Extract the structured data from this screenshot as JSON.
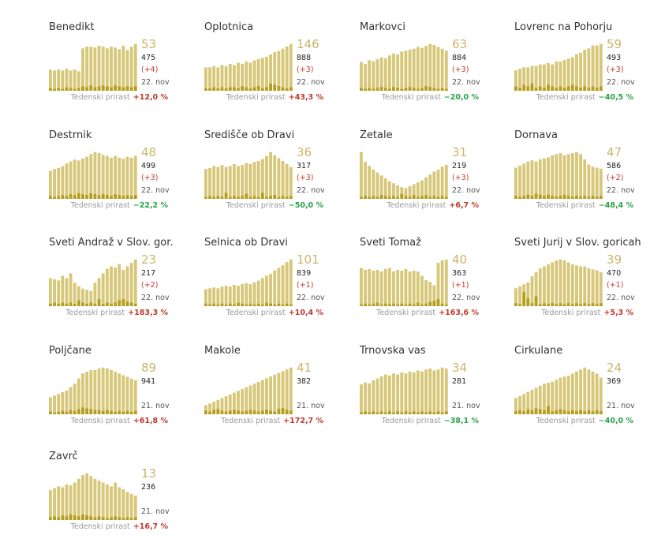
{
  "colors": {
    "bar": "#d7c778",
    "bar_dark": "#b59e1e",
    "big_number": "#c9b56a",
    "positive_growth": "#c0392b",
    "negative_growth": "#27a347",
    "new_cases": "#c0392b"
  },
  "growth_label": "Tedenski prirast",
  "chart_data": [
    {
      "type": "bar",
      "title": "Benedikt",
      "current": "53",
      "total": "475",
      "new": "(+4)",
      "date": "22. nov",
      "growth": "+12,0 %",
      "growth_positive": true,
      "values": [
        24,
        23,
        24,
        23,
        25,
        23,
        24,
        22,
        48,
        50,
        50,
        49,
        51,
        50,
        48,
        50,
        49,
        47,
        51,
        46,
        50,
        53
      ],
      "recent": [
        3,
        2,
        3,
        2,
        4,
        3,
        2,
        3,
        5,
        4,
        6,
        4,
        5,
        6,
        5,
        4,
        6,
        5,
        4,
        5,
        4,
        5
      ]
    },
    {
      "type": "bar",
      "title": "Oplotnica",
      "current": "146",
      "total": "888",
      "new": "(+3)",
      "date": "22. nov",
      "growth": "+43,3 %",
      "growth_positive": true,
      "values": [
        20,
        20,
        21,
        20,
        22,
        21,
        23,
        22,
        24,
        23,
        25,
        24,
        26,
        27,
        28,
        29,
        31,
        33,
        34,
        36,
        38,
        40
      ],
      "recent": [
        2,
        2,
        3,
        2,
        3,
        2,
        3,
        3,
        2,
        4,
        3,
        2,
        3,
        4,
        2,
        3,
        6,
        5,
        4,
        3,
        2,
        3
      ]
    },
    {
      "type": "bar",
      "title": "Markovci",
      "current": "63",
      "total": "884",
      "new": "(+3)",
      "date": "22. nov",
      "growth": "−20,0 %",
      "growth_positive": false,
      "values": [
        30,
        28,
        32,
        31,
        33,
        35,
        34,
        37,
        39,
        38,
        41,
        42,
        43,
        44,
        46,
        45,
        47,
        49,
        48,
        46,
        44,
        42
      ],
      "recent": [
        3,
        2,
        3,
        2,
        3,
        4,
        3,
        2,
        4,
        3,
        2,
        3,
        4,
        3,
        2,
        3,
        5,
        4,
        3,
        2,
        3,
        2
      ]
    },
    {
      "type": "bar",
      "title": "Lovrenc na Pohorju",
      "current": "59",
      "total": "493",
      "new": "(+3)",
      "date": "22. nov",
      "growth": "−40,5 %",
      "growth_positive": false,
      "values": [
        14,
        15,
        16,
        16,
        17,
        17,
        18,
        18,
        19,
        18,
        20,
        20,
        21,
        22,
        23,
        25,
        26,
        28,
        29,
        31,
        31,
        32
      ],
      "recent": [
        3,
        2,
        4,
        3,
        5,
        2,
        3,
        2,
        4,
        3,
        2,
        3,
        2,
        3,
        4,
        3,
        2,
        3,
        2,
        3,
        2,
        3
      ]
    },
    {
      "type": "bar",
      "title": "Destrnik",
      "current": "48",
      "total": "499",
      "new": "(+3)",
      "date": "22. nov",
      "growth": "−22,2 %",
      "growth_positive": false,
      "values": [
        30,
        32,
        33,
        35,
        38,
        40,
        42,
        41,
        43,
        45,
        48,
        50,
        49,
        47,
        46,
        44,
        46,
        44,
        43,
        45,
        44,
        46
      ],
      "recent": [
        3,
        2,
        3,
        4,
        3,
        5,
        4,
        6,
        5,
        4,
        6,
        5,
        4,
        5,
        4,
        3,
        5,
        4,
        3,
        4,
        3,
        4
      ]
    },
    {
      "type": "bar",
      "title": "Središče ob Dravi",
      "current": "36",
      "total": "317",
      "new": "(+3)",
      "date": "22. nov",
      "growth": "−50,0 %",
      "growth_positive": false,
      "values": [
        30,
        31,
        33,
        32,
        34,
        32,
        33,
        35,
        33,
        34,
        36,
        35,
        37,
        38,
        40,
        43,
        47,
        44,
        41,
        38,
        35,
        32
      ],
      "recent": [
        2,
        3,
        2,
        3,
        2,
        6,
        2,
        3,
        2,
        3,
        5,
        2,
        3,
        2,
        6,
        2,
        3,
        4,
        2,
        3,
        2,
        3
      ]
    },
    {
      "type": "bar",
      "title": "Žetale",
      "current": "31",
      "total": "219",
      "new": "(+3)",
      "date": "22. nov",
      "growth": "+6,7 %",
      "growth_positive": true,
      "values": [
        48,
        38,
        34,
        30,
        27,
        24,
        21,
        18,
        16,
        14,
        12,
        11,
        13,
        15,
        17,
        19,
        22,
        25,
        28,
        30,
        33,
        35
      ],
      "recent": [
        2,
        3,
        2,
        3,
        2,
        4,
        3,
        2,
        3,
        2,
        5,
        3,
        2,
        4,
        2,
        3,
        4,
        2,
        3,
        2,
        3,
        2
      ]
    },
    {
      "type": "bar",
      "title": "Dornava",
      "current": "47",
      "total": "586",
      "new": "(+2)",
      "date": "22. nov",
      "growth": "−48,4 %",
      "growth_positive": false,
      "values": [
        30,
        32,
        34,
        36,
        37,
        36,
        38,
        39,
        40,
        42,
        43,
        44,
        42,
        43,
        44,
        45,
        43,
        38,
        33,
        31,
        30,
        29
      ],
      "recent": [
        3,
        2,
        3,
        4,
        3,
        5,
        4,
        3,
        4,
        3,
        2,
        3,
        4,
        3,
        2,
        3,
        2,
        3,
        2,
        3,
        2,
        3
      ]
    },
    {
      "type": "bar",
      "title": "Sveti Andraž v Slov. gor.",
      "current": "23",
      "total": "217",
      "new": "(+2)",
      "date": "22. nov",
      "growth": "+183,3 %",
      "growth_positive": true,
      "values": [
        24,
        23,
        22,
        26,
        24,
        28,
        20,
        17,
        15,
        14,
        13,
        20,
        24,
        28,
        32,
        34,
        33,
        36,
        31,
        34,
        37,
        40
      ],
      "recent": [
        2,
        3,
        2,
        3,
        2,
        3,
        2,
        5,
        3,
        2,
        3,
        2,
        6,
        2,
        3,
        2,
        3,
        5,
        6,
        4,
        3,
        2
      ]
    },
    {
      "type": "bar",
      "title": "Selnica ob Dravi",
      "current": "101",
      "total": "839",
      "new": "(+1)",
      "date": "22. nov",
      "growth": "+10,4 %",
      "growth_positive": true,
      "values": [
        20,
        21,
        22,
        21,
        23,
        24,
        23,
        25,
        24,
        26,
        27,
        26,
        28,
        30,
        33,
        36,
        38,
        42,
        45,
        48,
        52,
        55
      ],
      "recent": [
        3,
        2,
        3,
        2,
        3,
        2,
        3,
        2,
        4,
        3,
        2,
        3,
        2,
        3,
        2,
        4,
        3,
        2,
        3,
        2,
        3,
        2
      ]
    },
    {
      "type": "bar",
      "title": "Sveti Tomaž",
      "current": "40",
      "total": "363",
      "new": "(+1)",
      "date": "22. nov",
      "growth": "+163,6 %",
      "growth_positive": true,
      "values": [
        44,
        42,
        43,
        41,
        42,
        40,
        43,
        44,
        40,
        42,
        41,
        43,
        40,
        41,
        40,
        35,
        30,
        28,
        24,
        50,
        53,
        54
      ],
      "recent": [
        2,
        3,
        2,
        3,
        4,
        2,
        3,
        2,
        3,
        2,
        3,
        2,
        3,
        2,
        4,
        2,
        3,
        5,
        6,
        8,
        3,
        2
      ]
    },
    {
      "type": "bar",
      "title": "Sveti Jurij v Slov. goricah",
      "current": "39",
      "total": "470",
      "new": "(+1)",
      "date": "22. nov",
      "growth": "+5,3 %",
      "growth_positive": true,
      "values": [
        18,
        20,
        22,
        24,
        30,
        34,
        38,
        40,
        42,
        44,
        46,
        47,
        46,
        44,
        42,
        41,
        40,
        40,
        38,
        37,
        36,
        34
      ],
      "recent": [
        3,
        2,
        14,
        8,
        3,
        10,
        2,
        3,
        2,
        3,
        2,
        3,
        2,
        3,
        2,
        3,
        2,
        3,
        2,
        3,
        2,
        3
      ]
    },
    {
      "type": "bar",
      "title": "Poljčane",
      "current": "89",
      "total": "941",
      "new": "",
      "date": "21. nov",
      "growth": "+61,8 %",
      "growth_positive": true,
      "values": [
        20,
        22,
        24,
        26,
        28,
        32,
        36,
        42,
        48,
        50,
        52,
        52,
        54,
        55,
        54,
        52,
        50,
        48,
        46,
        44,
        42,
        40
      ],
      "recent": [
        3,
        2,
        3,
        4,
        3,
        5,
        4,
        6,
        8,
        7,
        6,
        5,
        5,
        4,
        5,
        4,
        3,
        4,
        3,
        4,
        3,
        4
      ]
    },
    {
      "type": "bar",
      "title": "Makole",
      "current": "41",
      "total": "382",
      "new": "",
      "date": "21. nov",
      "growth": "+172,7 %",
      "growth_positive": true,
      "values": [
        10,
        12,
        14,
        16,
        18,
        20,
        22,
        24,
        26,
        28,
        30,
        32,
        34,
        36,
        38,
        40,
        42,
        44,
        46,
        48,
        50,
        52
      ],
      "recent": [
        4,
        3,
        5,
        6,
        4,
        3,
        4,
        5,
        4,
        3,
        4,
        5,
        4,
        3,
        4,
        5,
        4,
        3,
        6,
        7,
        5,
        4
      ]
    },
    {
      "type": "bar",
      "title": "Trnovska vas",
      "current": "34",
      "total": "281",
      "new": "",
      "date": "21. nov",
      "growth": "−38,1 %",
      "growth_positive": false,
      "values": [
        30,
        32,
        31,
        34,
        36,
        38,
        40,
        39,
        41,
        40,
        42,
        41,
        43,
        42,
        44,
        43,
        45,
        46,
        44,
        45,
        47,
        46
      ],
      "recent": [
        2,
        3,
        2,
        3,
        2,
        3,
        2,
        3,
        2,
        3,
        2,
        3,
        2,
        3,
        2,
        3,
        2,
        3,
        2,
        3,
        2,
        3
      ]
    },
    {
      "type": "bar",
      "title": "Cirkulane",
      "current": "24",
      "total": "369",
      "new": "",
      "date": "21. nov",
      "growth": "−40,0 %",
      "growth_positive": false,
      "values": [
        16,
        18,
        20,
        22,
        24,
        26,
        28,
        30,
        31,
        32,
        34,
        36,
        37,
        38,
        40,
        42,
        44,
        46,
        44,
        42,
        40,
        36
      ],
      "recent": [
        3,
        4,
        3,
        5,
        4,
        6,
        5,
        4,
        8,
        3,
        4,
        5,
        4,
        3,
        4,
        3,
        4,
        3,
        4,
        3,
        4,
        3
      ]
    },
    {
      "type": "bar",
      "title": "Zavrč",
      "current": "13",
      "total": "236",
      "new": "",
      "date": "21. nov",
      "growth": "+16,7 %",
      "growth_positive": true,
      "values": [
        32,
        34,
        36,
        35,
        38,
        37,
        40,
        44,
        48,
        50,
        47,
        44,
        42,
        40,
        38,
        36,
        40,
        35,
        33,
        30,
        28,
        26
      ],
      "recent": [
        3,
        4,
        3,
        5,
        4,
        6,
        5,
        4,
        6,
        5,
        4,
        3,
        4,
        3,
        2,
        3,
        4,
        3,
        2,
        3,
        2,
        3
      ]
    }
  ]
}
